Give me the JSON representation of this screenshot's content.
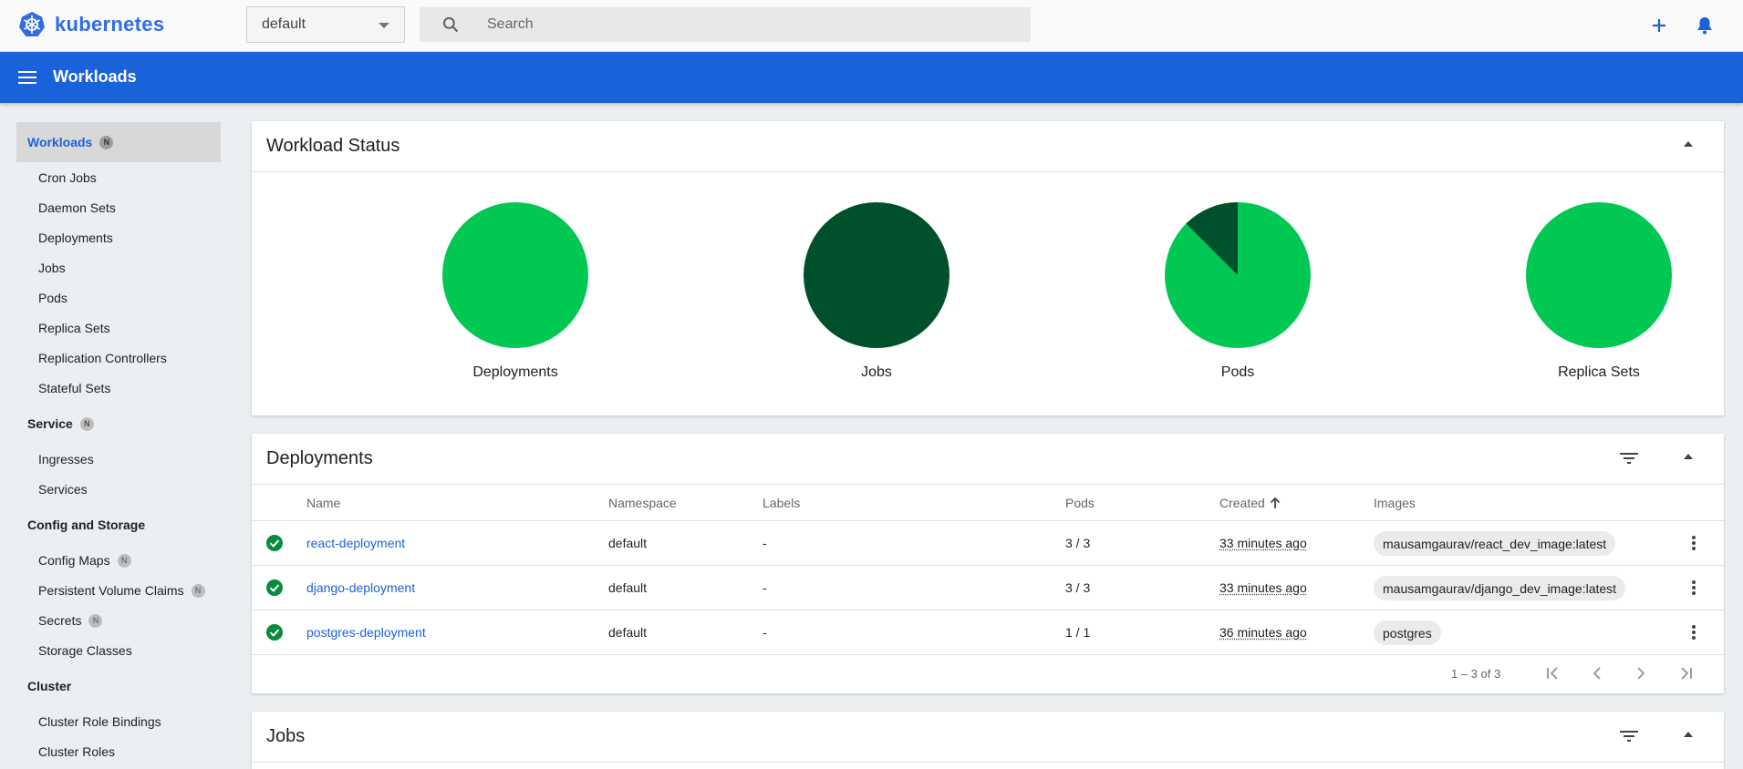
{
  "header": {
    "logo_text": "kubernetes",
    "namespace": "default",
    "search_placeholder": "Search"
  },
  "toolbar": {
    "title": "Workloads"
  },
  "sidebar": {
    "badge": "N",
    "workloads": {
      "label": "Workloads",
      "items": [
        "Cron Jobs",
        "Daemon Sets",
        "Deployments",
        "Jobs",
        "Pods",
        "Replica Sets",
        "Replication Controllers",
        "Stateful Sets"
      ]
    },
    "service": {
      "label": "Service",
      "items": [
        "Ingresses",
        "Services"
      ]
    },
    "config": {
      "label": "Config and Storage",
      "items": [
        "Config Maps",
        "Persistent Volume Claims",
        "Secrets",
        "Storage Classes"
      ]
    },
    "cluster": {
      "label": "Cluster",
      "items": [
        "Cluster Role Bindings",
        "Cluster Roles"
      ]
    }
  },
  "workload_status": {
    "title": "Workload Status",
    "charts": [
      {
        "label": "Deployments",
        "running_fraction": 1.0
      },
      {
        "label": "Jobs",
        "running_fraction": 0.0
      },
      {
        "label": "Pods",
        "running_fraction": 0.875
      },
      {
        "label": "Replica Sets",
        "running_fraction": 1.0
      }
    ],
    "colors": {
      "running": "#00c853",
      "succeeded": "#00512b"
    }
  },
  "deployments": {
    "title": "Deployments",
    "columns": {
      "name": "Name",
      "namespace": "Namespace",
      "labels": "Labels",
      "pods": "Pods",
      "created": "Created",
      "images": "Images"
    },
    "rows": [
      {
        "name": "react-deployment",
        "namespace": "default",
        "labels": "-",
        "pods": "3 / 3",
        "created": "33 minutes ago",
        "image": "mausamgaurav/react_dev_image:latest"
      },
      {
        "name": "django-deployment",
        "namespace": "default",
        "labels": "-",
        "pods": "3 / 3",
        "created": "33 minutes ago",
        "image": "mausamgaurav/django_dev_image:latest"
      },
      {
        "name": "postgres-deployment",
        "namespace": "default",
        "labels": "-",
        "pods": "1 / 1",
        "created": "36 minutes ago",
        "image": "postgres"
      }
    ],
    "page_range": "1 – 3 of 3"
  },
  "jobs": {
    "title": "Jobs"
  }
}
